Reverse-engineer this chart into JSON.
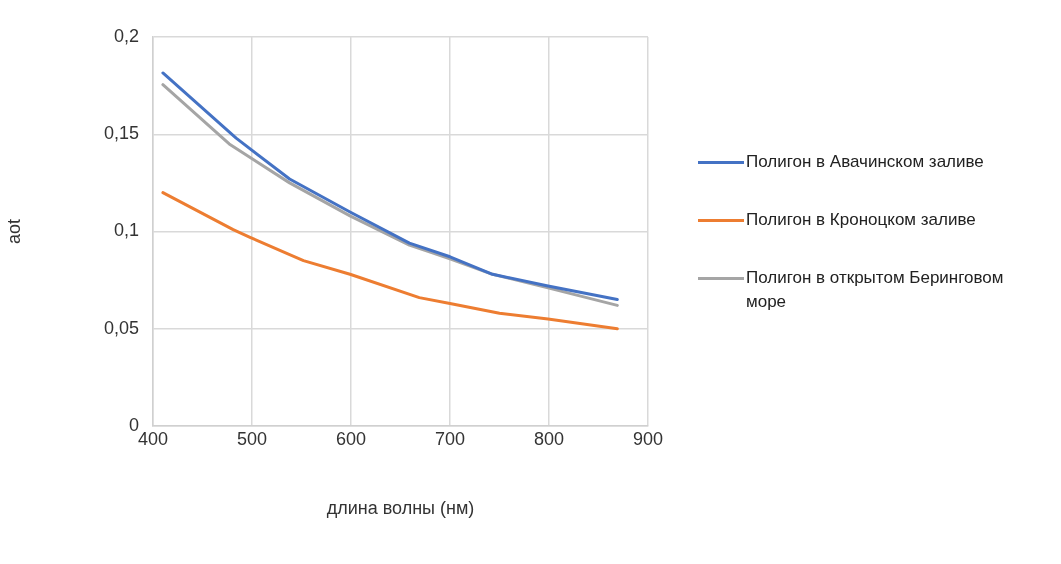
{
  "chart_data": {
    "type": "line",
    "xlabel": "длина волны (нм)",
    "ylabel": "aot",
    "xlim": [
      400,
      900
    ],
    "xticks": [
      400,
      500,
      600,
      700,
      800,
      900
    ],
    "ylim": [
      0,
      0.2
    ],
    "yticks": [
      {
        "value": 0,
        "label": "0"
      },
      {
        "value": 0.05,
        "label": "0,05"
      },
      {
        "value": 0.1,
        "label": "0,1"
      },
      {
        "value": 0.15,
        "label": "0,15"
      },
      {
        "value": 0.2,
        "label": "0,2"
      }
    ],
    "grid": true,
    "legend": "right",
    "marker": "none",
    "line_style": "solid",
    "series": [
      {
        "name": "Полигон в Авачинском заливе",
        "color": "#4472c4",
        "x": [
          410,
          484,
          538,
          599,
          659,
          700,
          743,
          799,
          869
        ],
        "values": [
          0.1815,
          0.148,
          0.127,
          0.11,
          0.094,
          0.087,
          0.078,
          0.072,
          0.065
        ]
      },
      {
        "name": "Полигон в Кроноцком заливе",
        "color": "#ed7d31",
        "x": [
          410,
          481,
          498,
          552,
          599,
          669,
          700,
          750,
          799,
          869
        ],
        "values": [
          0.12,
          0.101,
          0.097,
          0.085,
          0.078,
          0.066,
          0.063,
          0.058,
          0.055,
          0.05
        ]
      },
      {
        "name": "Полигон в открытом Беринговом море",
        "color": "#a5a5a5",
        "x": [
          410,
          477,
          538,
          599,
          659,
          700,
          743,
          799,
          869
        ],
        "values": [
          0.1755,
          0.145,
          0.125,
          0.108,
          0.093,
          0.086,
          0.078,
          0.071,
          0.062
        ]
      }
    ]
  }
}
